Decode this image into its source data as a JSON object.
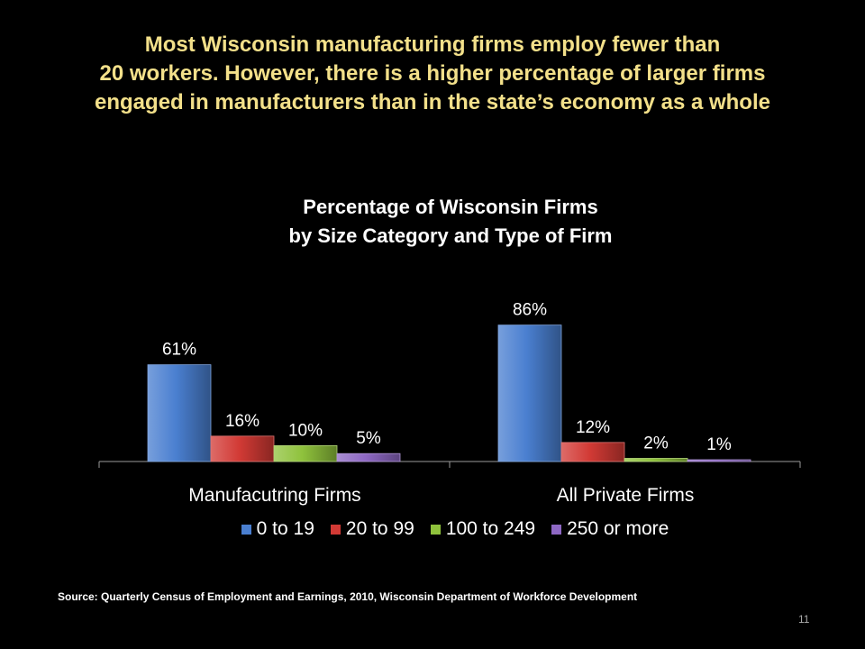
{
  "slide": {
    "title_lines": [
      "Most Wisconsin manufacturing firms employ fewer than",
      "20 workers. However, there is a higher percentage of larger firms",
      "engaged in manufacturers than in the state’s economy as a whole"
    ],
    "source": "Source: Quarterly Census of Employment and Earnings, 2010,  Wisconsin Department of Workforce Development",
    "page_number": "11"
  },
  "chart_data": {
    "type": "bar",
    "title_lines": [
      "Percentage of Wisconsin Firms",
      "by Size Category and Type of Firm"
    ],
    "categories": [
      "Manufacutring Firms",
      "All Private Firms"
    ],
    "series": [
      {
        "name": "0 to 19",
        "values": [
          61,
          86
        ],
        "labels": [
          "61%",
          "86%"
        ],
        "color": "#4a7fd0"
      },
      {
        "name": "20 to 99",
        "values": [
          16,
          12
        ],
        "labels": [
          "16%",
          "12%"
        ],
        "color": "#d23a35"
      },
      {
        "name": "100 to 249",
        "values": [
          10,
          2
        ],
        "labels": [
          "10%",
          "2%"
        ],
        "color": "#8fc23c"
      },
      {
        "name": "250 or more",
        "values": [
          5,
          1
        ],
        "labels": [
          "5%",
          "1%"
        ],
        "color": "#8e68c4"
      }
    ],
    "ylim": [
      0,
      100
    ],
    "grid": false,
    "legend_position": "bottom"
  }
}
